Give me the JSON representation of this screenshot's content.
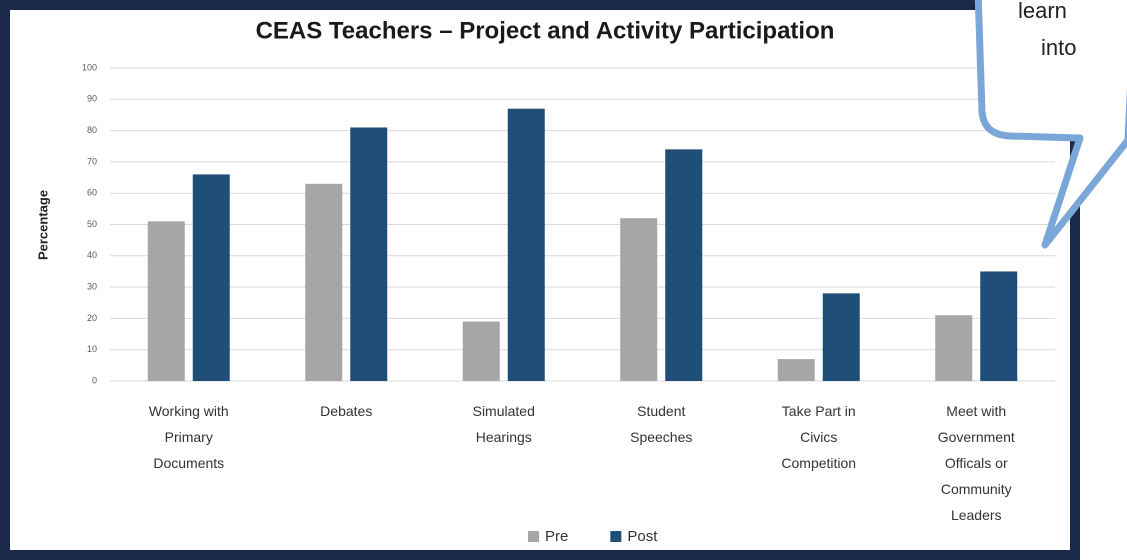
{
  "chart_data": {
    "type": "bar",
    "title": "CEAS Teachers – Project and Activity Participation",
    "y_label": "Percentage",
    "categories": [
      "Working with Primary Documents",
      "Debates",
      "Simulated Hearings",
      "Student Speeches",
      "Take Part in Civics Competition",
      "Meet with Government Officals or Community Leaders"
    ],
    "series": [
      {
        "name": "Pre",
        "color": "#a6a6a6",
        "values": [
          51,
          63,
          19,
          52,
          7,
          21
        ]
      },
      {
        "name": "Post",
        "color": "#1f4e79",
        "values": [
          66,
          81,
          87,
          74,
          28,
          35
        ]
      }
    ],
    "ylim": [
      0,
      100
    ],
    "yticks": [
      0,
      10,
      20,
      30,
      40,
      50,
      60,
      70,
      80,
      90,
      100
    ],
    "grid": true,
    "legend": "bottom"
  },
  "overlay": {
    "lines": [
      "learn",
      "into"
    ]
  }
}
